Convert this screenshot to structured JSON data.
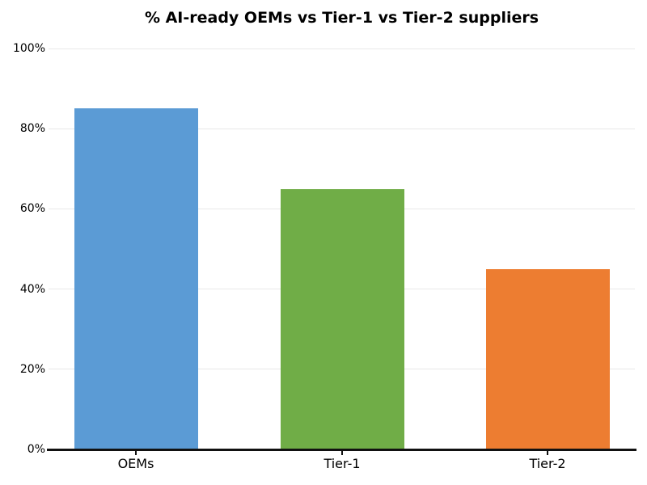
{
  "title": "% AI-ready OEMs vs Tier-1 vs Tier-2 suppliers",
  "chart_data": {
    "type": "bar",
    "title": "% AI-ready OEMs vs Tier-1 vs Tier-2 suppliers",
    "categories": [
      "OEMs",
      "Tier-1",
      "Tier-2"
    ],
    "values": [
      85,
      65,
      45
    ],
    "bar_colors": [
      "#5B9BD5",
      "#70AD47",
      "#ED7D31"
    ],
    "xlabel": "",
    "ylabel": "",
    "ylim": [
      0,
      100
    ],
    "yticks": [
      0,
      20,
      40,
      60,
      80,
      100
    ],
    "ytick_labels": [
      "0%",
      "20%",
      "40%",
      "60%",
      "80%",
      "100%"
    ],
    "grid": "horizontal-only",
    "legend_position": "none",
    "colors": {
      "background": "#ffffff",
      "gridline": "#e8e8e8",
      "axis_line": "#111111",
      "text": "#000000"
    }
  }
}
